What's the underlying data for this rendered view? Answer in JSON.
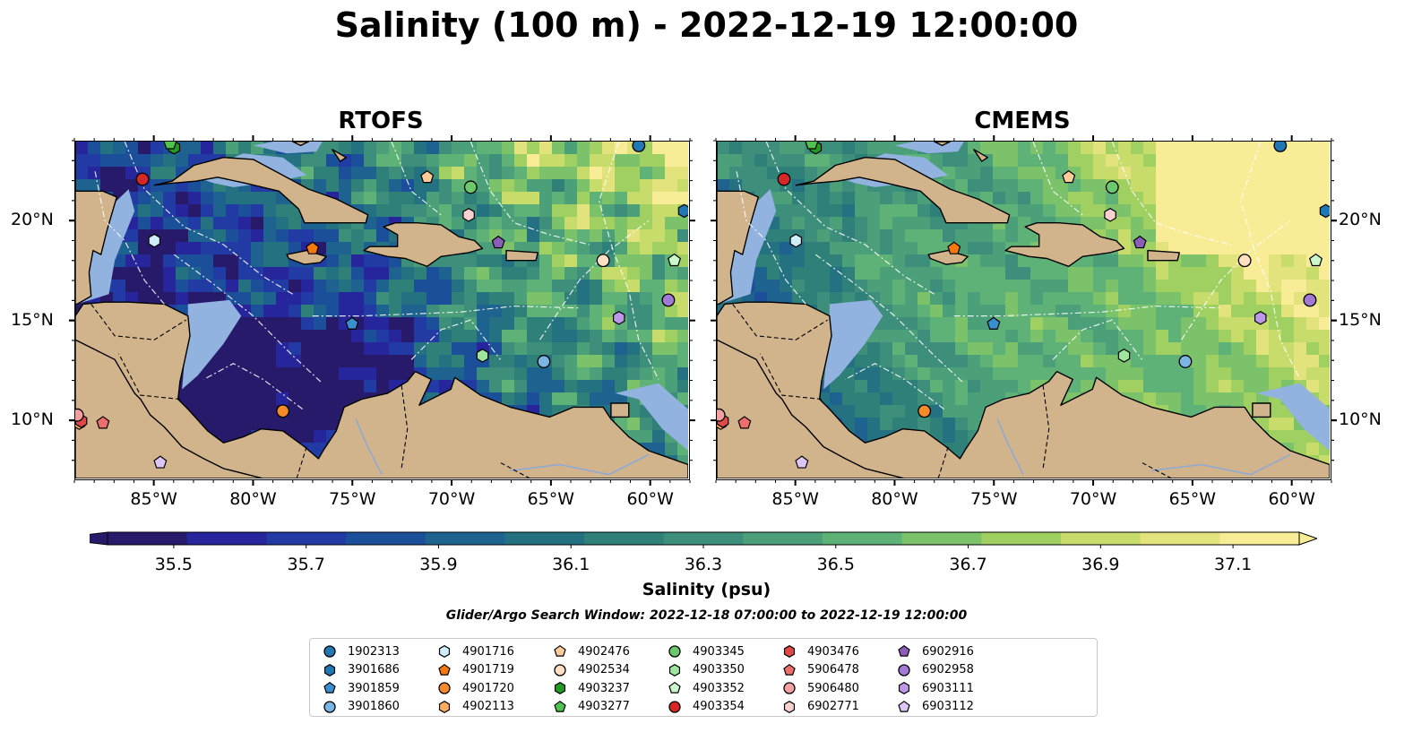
{
  "title": "Salinity (100 m) - 2022-12-19 12:00:00",
  "panels": [
    {
      "title": "RTOFS",
      "field": "rtofs"
    },
    {
      "title": "CMEMS",
      "field": "cmems"
    }
  ],
  "map": {
    "lon_range": [
      -89,
      -58
    ],
    "lat_range": [
      7,
      24
    ],
    "lon_ticks": [
      "85°W",
      "80°W",
      "75°W",
      "70°W",
      "65°W",
      "60°W"
    ],
    "lon_tick_values": [
      -85,
      -80,
      -75,
      -70,
      -65,
      -60
    ],
    "lat_ticks": [
      "20°N",
      "15°N",
      "10°N"
    ],
    "lat_tick_values": [
      20,
      15,
      10
    ],
    "land_color": "#d2b48c",
    "shelf_color": "#92b2e0"
  },
  "colorbar": {
    "label": "Salinity (psu)",
    "tick_labels": [
      "35.5",
      "35.7",
      "35.9",
      "36.1",
      "36.3",
      "36.5",
      "36.7",
      "36.9",
      "37.1"
    ],
    "min": 35.4,
    "max": 37.2,
    "colors": [
      "#271a6b",
      "#26259b",
      "#223aa3",
      "#1c4f9a",
      "#1e628f",
      "#247182",
      "#2f8079",
      "#3d8e7a",
      "#4ba07a",
      "#5fb277",
      "#7cc26b",
      "#a0d062",
      "#c8dc6c",
      "#e2e37d",
      "#f8ec96"
    ]
  },
  "search_window": "Glider/Argo Search Window: 2022-12-18 07:00:00 to 2022-12-19 12:00:00",
  "legend": [
    {
      "id": "1902313",
      "marker": "circle",
      "color": "#1f77b4",
      "lon": -60.5,
      "lat": 23.8
    },
    {
      "id": "3901686",
      "marker": "hexagon",
      "color": "#1f77b4",
      "lon": -58.2,
      "lat": 20.5
    },
    {
      "id": "3901859",
      "marker": "pentagon",
      "color": "#3a8fd0",
      "lon": -75.0,
      "lat": 14.8
    },
    {
      "id": "3901860",
      "marker": "circle",
      "color": "#79b6e6",
      "lon": -65.3,
      "lat": 12.9
    },
    {
      "id": "4901716",
      "marker": "hexagon",
      "color": "#cfeefa",
      "lon": -85.0,
      "lat": 19.0
    },
    {
      "id": "4901719",
      "marker": "pentagon",
      "color": "#f5780f",
      "lon": -77.0,
      "lat": 18.6
    },
    {
      "id": "4901720",
      "marker": "circle",
      "color": "#f58a2a",
      "lon": -78.5,
      "lat": 10.4
    },
    {
      "id": "4902113",
      "marker": "hexagon",
      "color": "#ffad5c",
      "lon": -88.8,
      "lat": 9.8
    },
    {
      "id": "4902476",
      "marker": "pentagon",
      "color": "#ffcc99",
      "lon": -71.2,
      "lat": 22.2
    },
    {
      "id": "4902534",
      "marker": "circle",
      "color": "#ffe0c4",
      "lon": -62.3,
      "lat": 18.0
    },
    {
      "id": "4903237",
      "marker": "hexagon",
      "color": "#239a23",
      "lon": -84.0,
      "lat": 23.7
    },
    {
      "id": "4903277",
      "marker": "pentagon",
      "color": "#4fc24f",
      "lon": -84.2,
      "lat": 23.9
    },
    {
      "id": "4903345",
      "marker": "circle",
      "color": "#6cc86c",
      "lon": -69.0,
      "lat": 21.7
    },
    {
      "id": "4903350",
      "marker": "hexagon",
      "color": "#9ee69e",
      "lon": -68.4,
      "lat": 13.2
    },
    {
      "id": "4903352",
      "marker": "pentagon",
      "color": "#ccf7cc",
      "lon": -58.7,
      "lat": 18.0
    },
    {
      "id": "4903354",
      "marker": "circle",
      "color": "#d62728",
      "lon": -85.6,
      "lat": 22.1
    },
    {
      "id": "4903476",
      "marker": "hexagon",
      "color": "#e04848",
      "lon": -88.7,
      "lat": 9.9
    },
    {
      "id": "5906478",
      "marker": "pentagon",
      "color": "#ee6e6e",
      "lon": -87.6,
      "lat": 9.8
    },
    {
      "id": "5906480",
      "marker": "circle",
      "color": "#f4a0a0",
      "lon": -88.9,
      "lat": 10.2
    },
    {
      "id": "6902771",
      "marker": "hexagon",
      "color": "#fbd0d0",
      "lon": -69.1,
      "lat": 20.3
    },
    {
      "id": "6902916",
      "marker": "pentagon",
      "color": "#8a5eb8",
      "lon": -67.6,
      "lat": 18.9
    },
    {
      "id": "6902958",
      "marker": "circle",
      "color": "#a27ad6",
      "lon": -59.0,
      "lat": 16.0
    },
    {
      "id": "6903111",
      "marker": "hexagon",
      "color": "#bc98e8",
      "lon": -61.5,
      "lat": 15.1
    },
    {
      "id": "6903112",
      "marker": "pentagon",
      "color": "#dcc6f6",
      "lon": -84.7,
      "lat": 7.8
    }
  ]
}
